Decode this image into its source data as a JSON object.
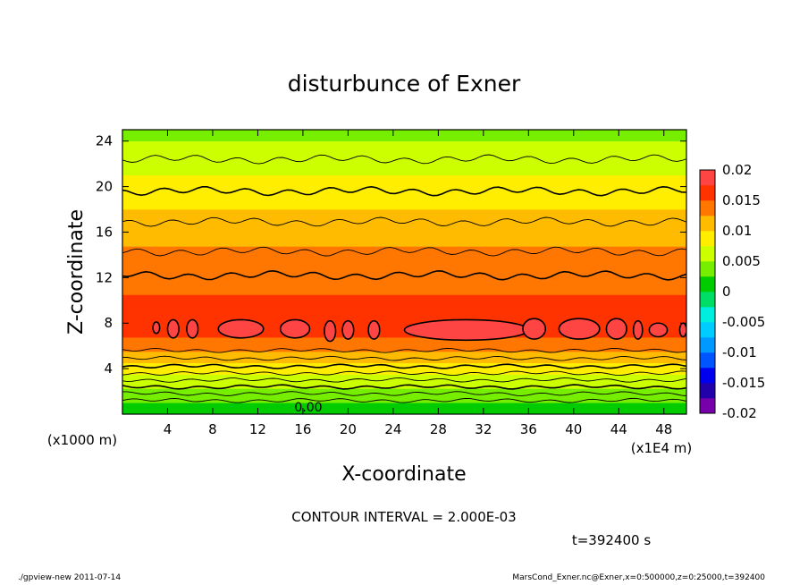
{
  "chart_data": {
    "type": "heatmap",
    "title": "disturbunce of Exner",
    "xlabel": "X-coordinate",
    "ylabel": "Z-coordinate",
    "x_unit": "(x1E4 m)",
    "y_unit": "(x1000 m)",
    "xlim": [
      0,
      50
    ],
    "ylim": [
      0,
      25
    ],
    "x_ticks": [
      "4",
      "8",
      "12",
      "16",
      "20",
      "24",
      "28",
      "32",
      "36",
      "40",
      "44",
      "48"
    ],
    "y_ticks": [
      "4",
      "8",
      "12",
      "16",
      "20",
      "24"
    ],
    "colorbar": {
      "ticks": [
        "0.02",
        "0.015",
        "0.01",
        "0.005",
        "0",
        "-0.005",
        "-0.01",
        "-0.015",
        "-0.02"
      ],
      "range": [
        -0.02,
        0.02
      ]
    },
    "profile": {
      "z": [
        0,
        1,
        2,
        3,
        4,
        5,
        6,
        7,
        8,
        9,
        10,
        11,
        12,
        13,
        14,
        15,
        16,
        17,
        18,
        19,
        20,
        21,
        22,
        23,
        24,
        25
      ],
      "value": [
        0.0005,
        0.0025,
        0.0045,
        0.0065,
        0.0085,
        0.011,
        0.014,
        0.0155,
        0.0162,
        0.0158,
        0.0152,
        0.0148,
        0.0143,
        0.0138,
        0.0131,
        0.0124,
        0.0116,
        0.0108,
        0.01,
        0.0092,
        0.0083,
        0.0075,
        0.0066,
        0.0058,
        0.005,
        0.0045
      ]
    },
    "contour_levels_z": [
      1.2,
      1.8,
      2.4,
      3.0,
      3.6,
      4.2,
      4.9,
      5.6,
      12.2,
      14.3,
      16.9,
      19.6,
      22.4
    ],
    "contour_label": "0.00",
    "closed_contours": [
      {
        "x": 3.0,
        "z": 7.6,
        "rx": 0.3,
        "rz": 0.5
      },
      {
        "x": 4.5,
        "z": 7.5,
        "rx": 0.5,
        "rz": 0.8
      },
      {
        "x": 6.2,
        "z": 7.5,
        "rx": 0.5,
        "rz": 0.8
      },
      {
        "x": 10.5,
        "z": 7.5,
        "rx": 2.0,
        "rz": 0.8
      },
      {
        "x": 15.3,
        "z": 7.5,
        "rx": 1.3,
        "rz": 0.8
      },
      {
        "x": 18.4,
        "z": 7.3,
        "rx": 0.5,
        "rz": 0.9
      },
      {
        "x": 20.0,
        "z": 7.4,
        "rx": 0.5,
        "rz": 0.8
      },
      {
        "x": 22.3,
        "z": 7.4,
        "rx": 0.5,
        "rz": 0.8
      },
      {
        "x": 30.5,
        "z": 7.4,
        "rx": 5.5,
        "rz": 0.9
      },
      {
        "x": 36.5,
        "z": 7.5,
        "rx": 1.0,
        "rz": 0.9
      },
      {
        "x": 40.5,
        "z": 7.5,
        "rx": 1.8,
        "rz": 0.9
      },
      {
        "x": 43.8,
        "z": 7.5,
        "rx": 0.9,
        "rz": 0.9
      },
      {
        "x": 45.7,
        "z": 7.4,
        "rx": 0.4,
        "rz": 0.8
      },
      {
        "x": 47.5,
        "z": 7.4,
        "rx": 0.8,
        "rz": 0.6
      },
      {
        "x": 49.7,
        "z": 7.4,
        "rx": 0.3,
        "rz": 0.6
      }
    ]
  },
  "annotations": {
    "contour_interval": "CONTOUR INTERVAL = 2.000E-03",
    "time": "t=392400 s"
  },
  "footer": {
    "left": "./gpview-new   2011-07-14",
    "right": "MarsCond_Exner.nc@Exner,x=0:500000,z=0:25000,t=392400"
  }
}
